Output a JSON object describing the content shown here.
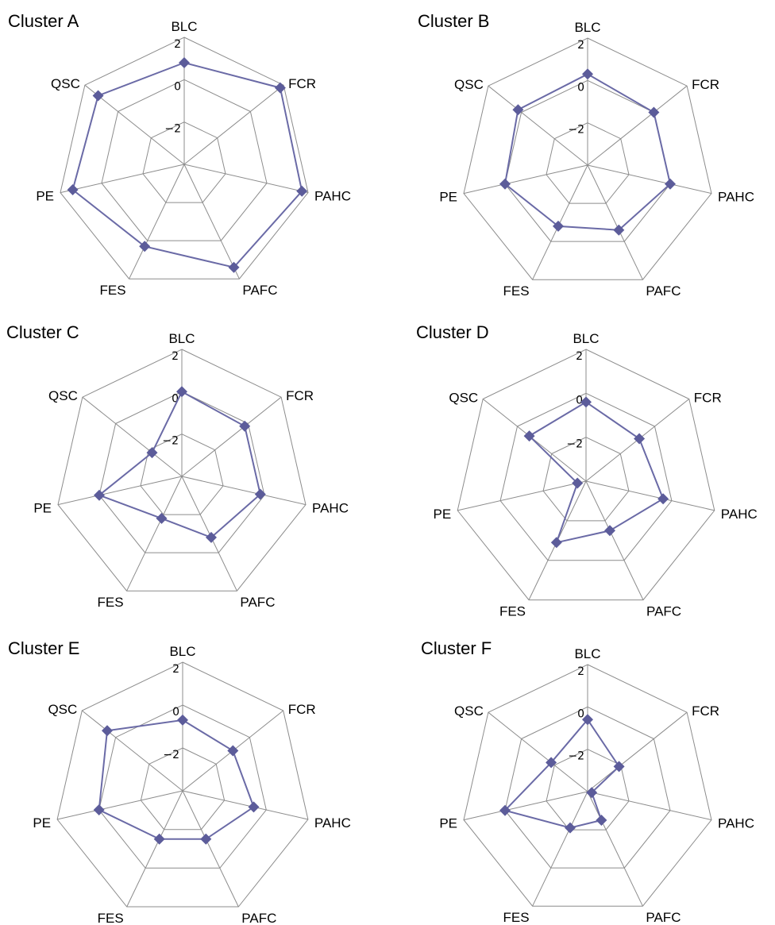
{
  "chart_data": [
    {
      "type": "radar",
      "title": "Cluster A",
      "axes": [
        "BLC",
        "FCR",
        "PAHC",
        "PAFC",
        "FES",
        "PE",
        "QSC"
      ],
      "ticks": [
        "2",
        "0",
        "−2"
      ],
      "range": [
        -4,
        2
      ],
      "values": [
        0.8,
        1.8,
        1.7,
        1.4,
        0.3,
        1.4,
        1.2
      ],
      "line_color": "#6a6aa6",
      "marker_color": "#5c5c9a",
      "grid_color": "#8c8c8c"
    },
    {
      "type": "radar",
      "title": "Cluster B",
      "axes": [
        "BLC",
        "FCR",
        "PAHC",
        "PAFC",
        "FES",
        "PE",
        "QSC"
      ],
      "ticks": [
        "2",
        "0",
        "−2"
      ],
      "range": [
        -4,
        2
      ],
      "values": [
        0.3,
        0.0,
        0.0,
        -0.6,
        -0.8,
        0.0,
        0.2
      ],
      "line_color": "#6a6aa6",
      "marker_color": "#5c5c9a",
      "grid_color": "#8c8c8c"
    },
    {
      "type": "radar",
      "title": "Cluster C",
      "axes": [
        "BLC",
        "FCR",
        "PAHC",
        "PAFC",
        "FES",
        "PE",
        "QSC"
      ],
      "ticks": [
        "2",
        "0",
        "−2"
      ],
      "range": [
        -4,
        2
      ],
      "values": [
        0.0,
        -0.2,
        -0.2,
        -0.8,
        -1.8,
        0.0,
        -2.2
      ],
      "line_color": "#6a6aa6",
      "marker_color": "#5c5c9a",
      "grid_color": "#8c8c8c"
    },
    {
      "type": "radar",
      "title": "Cluster D",
      "axes": [
        "BLC",
        "FCR",
        "PAHC",
        "PAFC",
        "FES",
        "PE",
        "QSC"
      ],
      "ticks": [
        "2",
        "0",
        "−2"
      ],
      "range": [
        -4,
        2
      ],
      "values": [
        -0.4,
        -0.9,
        -0.4,
        -1.5,
        -0.9,
        -3.6,
        -0.7
      ],
      "line_color": "#6a6aa6",
      "marker_color": "#5c5c9a",
      "grid_color": "#8c8c8c"
    },
    {
      "type": "radar",
      "title": "Cluster E",
      "axes": [
        "BLC",
        "FCR",
        "PAHC",
        "PAFC",
        "FES",
        "PE",
        "QSC"
      ],
      "ticks": [
        "2",
        "0",
        "−2"
      ],
      "range": [
        -4,
        2
      ],
      "values": [
        -0.7,
        -1.0,
        -0.6,
        -1.5,
        -1.5,
        0.0,
        0.5
      ],
      "line_color": "#6a6aa6",
      "marker_color": "#5c5c9a",
      "grid_color": "#8c8c8c"
    },
    {
      "type": "radar",
      "title": "Cluster F",
      "axes": [
        "BLC",
        "FCR",
        "PAHC",
        "PAFC",
        "FES",
        "PE",
        "QSC"
      ],
      "ticks": [
        "2",
        "0",
        "−2"
      ],
      "range": [
        -4,
        2
      ],
      "values": [
        -0.6,
        -2.1,
        -3.8,
        -2.5,
        -2.1,
        0.0,
        -1.8
      ],
      "line_color": "#6a6aa6",
      "marker_color": "#5c5c9a",
      "grid_color": "#8c8c8c"
    }
  ]
}
